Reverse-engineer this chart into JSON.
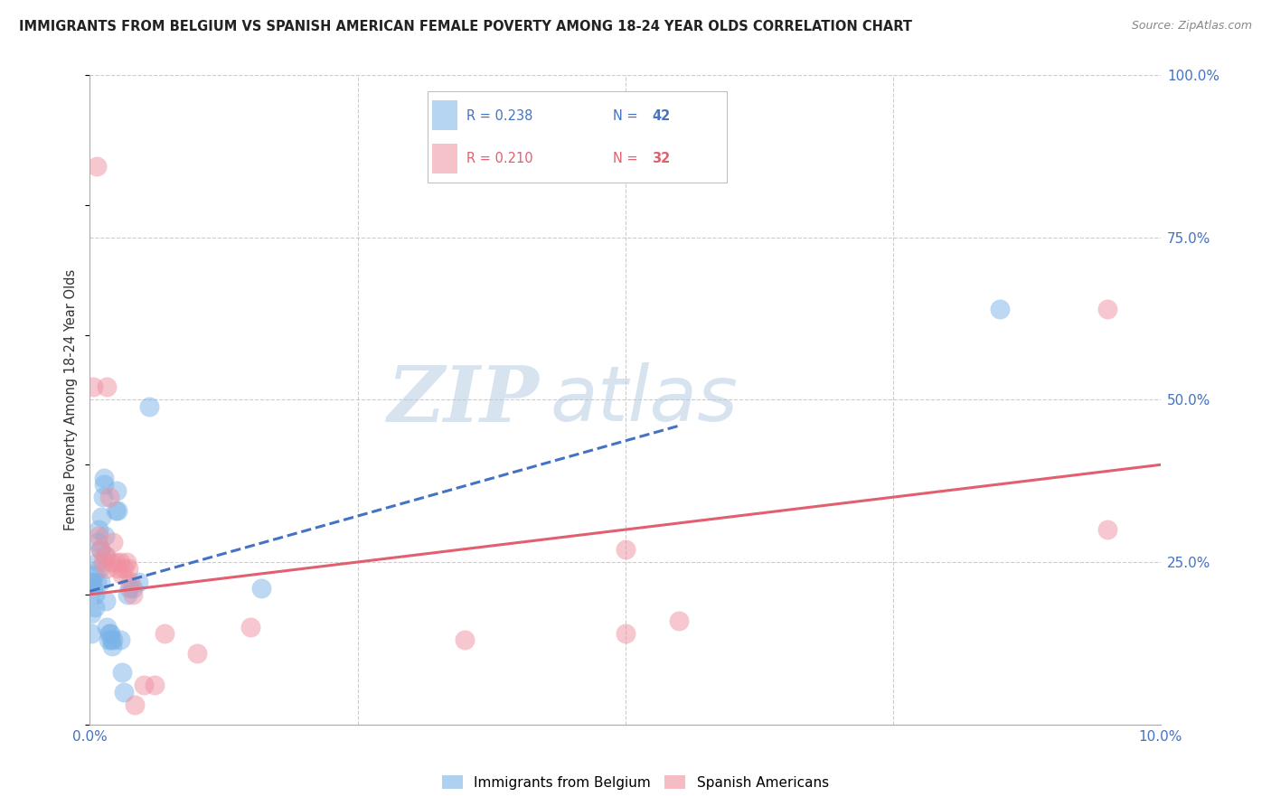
{
  "title": "IMMIGRANTS FROM BELGIUM VS SPANISH AMERICAN FEMALE POVERTY AMONG 18-24 YEAR OLDS CORRELATION CHART",
  "source": "Source: ZipAtlas.com",
  "ylabel": "Female Poverty Among 18-24 Year Olds",
  "xlim": [
    0.0,
    10.0
  ],
  "ylim": [
    0.0,
    100.0
  ],
  "grid_color": "#cccccc",
  "background_color": "#ffffff",
  "watermark_zip": "ZIP",
  "watermark_atlas": "atlas",
  "watermark_color_zip": "#b8cce4",
  "watermark_color_atlas": "#b8cce4",
  "blue_color": "#7ab3e8",
  "pink_color": "#f090a0",
  "blue_line_color": "#4472c4",
  "pink_line_color": "#e06070",
  "blue_scatter": [
    [
      0.02,
      22.0
    ],
    [
      0.03,
      21.0
    ],
    [
      0.04,
      23.0
    ],
    [
      0.05,
      20.0
    ],
    [
      0.05,
      18.0
    ],
    [
      0.06,
      22.0
    ],
    [
      0.07,
      28.0
    ],
    [
      0.07,
      25.0
    ],
    [
      0.08,
      30.0
    ],
    [
      0.09,
      24.0
    ],
    [
      0.1,
      27.0
    ],
    [
      0.1,
      22.0
    ],
    [
      0.11,
      32.0
    ],
    [
      0.12,
      35.0
    ],
    [
      0.13,
      37.0
    ],
    [
      0.13,
      38.0
    ],
    [
      0.14,
      29.0
    ],
    [
      0.15,
      26.0
    ],
    [
      0.15,
      19.0
    ],
    [
      0.16,
      15.0
    ],
    [
      0.17,
      13.0
    ],
    [
      0.18,
      14.0
    ],
    [
      0.19,
      14.0
    ],
    [
      0.2,
      13.0
    ],
    [
      0.21,
      12.0
    ],
    [
      0.22,
      13.0
    ],
    [
      0.24,
      33.0
    ],
    [
      0.25,
      36.0
    ],
    [
      0.26,
      33.0
    ],
    [
      0.28,
      13.0
    ],
    [
      0.3,
      8.0
    ],
    [
      0.32,
      5.0
    ],
    [
      0.35,
      20.0
    ],
    [
      0.37,
      21.0
    ],
    [
      0.4,
      21.0
    ],
    [
      0.45,
      22.0
    ],
    [
      0.55,
      49.0
    ],
    [
      1.6,
      21.0
    ],
    [
      0.01,
      17.0
    ],
    [
      0.01,
      14.0
    ],
    [
      8.5,
      64.0
    ],
    [
      0.01,
      22.0
    ]
  ],
  "pink_scatter": [
    [
      0.06,
      86.0
    ],
    [
      0.03,
      52.0
    ],
    [
      0.08,
      29.0
    ],
    [
      0.1,
      27.0
    ],
    [
      0.12,
      25.0
    ],
    [
      0.14,
      26.0
    ],
    [
      0.16,
      24.0
    ],
    [
      0.18,
      35.0
    ],
    [
      0.2,
      25.0
    ],
    [
      0.22,
      28.0
    ],
    [
      0.24,
      25.0
    ],
    [
      0.26,
      24.0
    ],
    [
      0.28,
      25.0
    ],
    [
      0.3,
      23.0
    ],
    [
      0.32,
      24.0
    ],
    [
      0.34,
      25.0
    ],
    [
      0.36,
      24.0
    ],
    [
      0.38,
      22.0
    ],
    [
      0.4,
      20.0
    ],
    [
      0.42,
      3.0
    ],
    [
      0.5,
      6.0
    ],
    [
      0.6,
      6.0
    ],
    [
      0.7,
      14.0
    ],
    [
      1.0,
      11.0
    ],
    [
      1.5,
      15.0
    ],
    [
      3.5,
      13.0
    ],
    [
      5.0,
      14.0
    ],
    [
      5.5,
      16.0
    ],
    [
      5.0,
      27.0
    ],
    [
      9.5,
      64.0
    ],
    [
      9.5,
      30.0
    ],
    [
      0.16,
      52.0
    ]
  ],
  "blue_trend_x": [
    0.0,
    5.5
  ],
  "blue_trend_y": [
    20.5,
    46.0
  ],
  "pink_trend_x": [
    0.0,
    10.0
  ],
  "pink_trend_y": [
    20.0,
    40.0
  ]
}
